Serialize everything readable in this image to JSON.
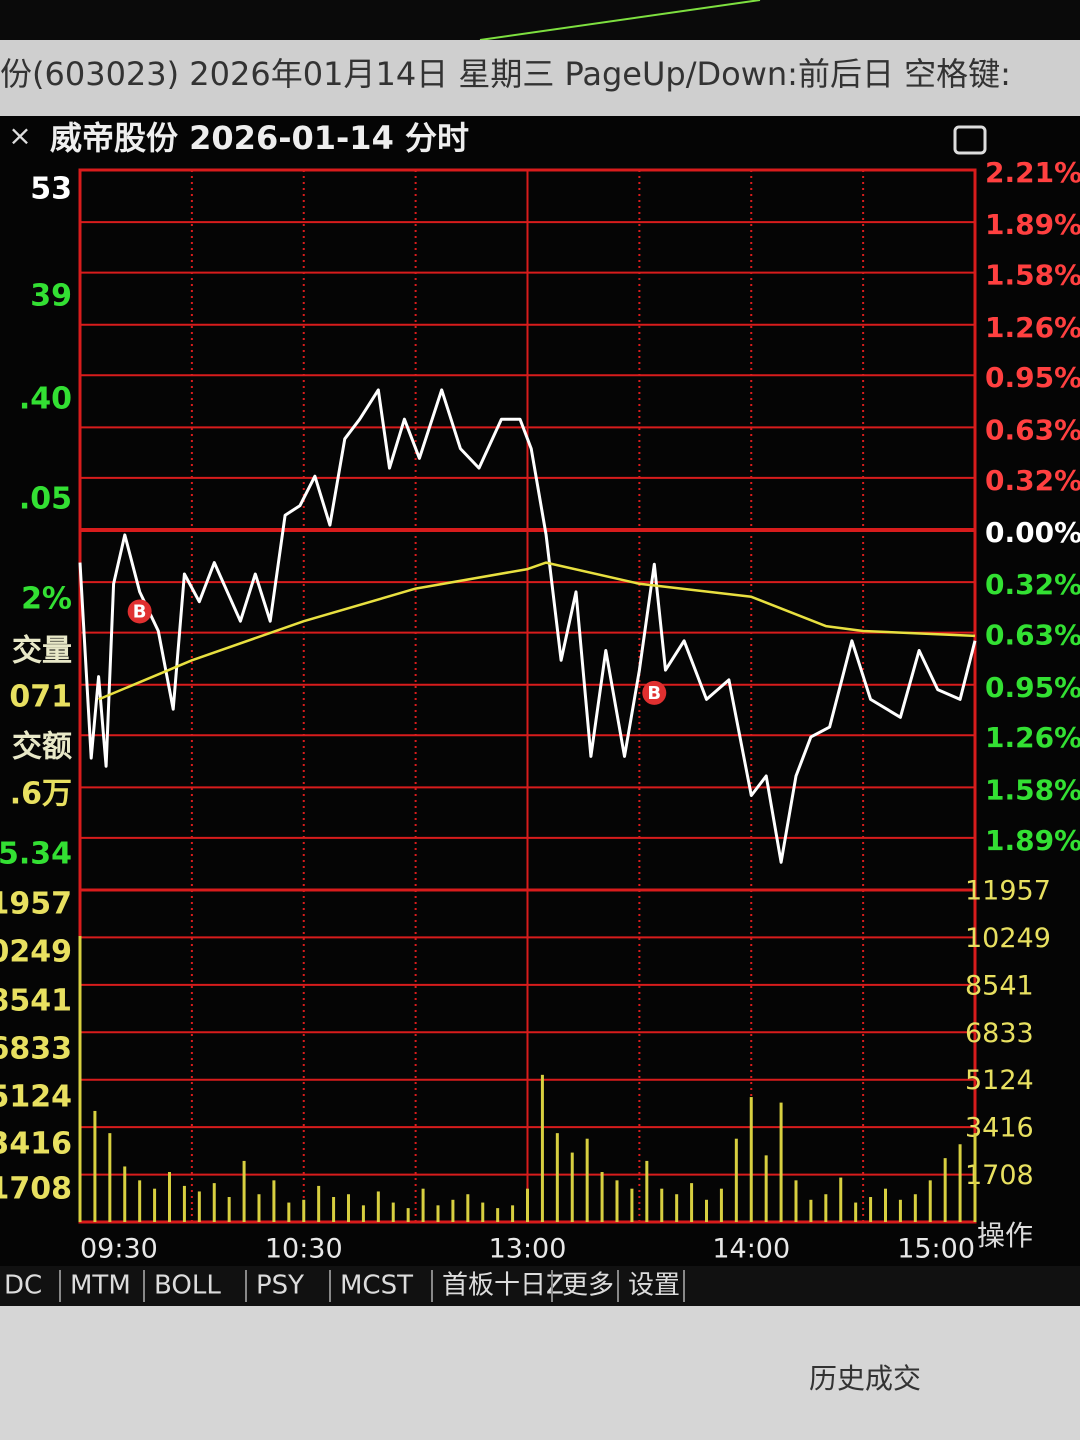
{
  "header": {
    "text": "份(603023) 2026年01月14日 星期三 PageUp/Down:前后日 空格键:"
  },
  "panel": {
    "close": "×",
    "title": "威帝股份  2026-01-14 分时",
    "action": "操作"
  },
  "left_labels": [
    {
      "text": "53",
      "color": "#ffffff"
    },
    {
      "text": "39",
      "color": "#33e033"
    },
    {
      "text": ".40",
      "color": "#33e033"
    },
    {
      "text": ".05",
      "color": "#33e033"
    },
    {
      "text": "2%",
      "color": "#33e033"
    },
    {
      "text": "交量",
      "color": "#e8e8c8"
    },
    {
      "text": "071",
      "color": "#e8e060"
    },
    {
      "text": "交额",
      "color": "#e8e8c8"
    },
    {
      "text": ".6万",
      "color": "#e8e060"
    },
    {
      "text": "5.34",
      "color": "#33e033"
    },
    {
      "text": "1957",
      "color": "#e8e060"
    },
    {
      "text": "0249",
      "color": "#e8e060"
    },
    {
      "text": "8541",
      "color": "#e8e060"
    },
    {
      "text": "6833",
      "color": "#e8e060"
    },
    {
      "text": "5124",
      "color": "#e8e060"
    },
    {
      "text": "3416",
      "color": "#e8e060"
    },
    {
      "text": "1708",
      "color": "#e8e060"
    }
  ],
  "tabs": [
    "DC",
    "MTM",
    "BOLL",
    "PSY",
    "MCST",
    "首板十日Z",
    "更多",
    "设置"
  ],
  "footer": {
    "text": "历史成交"
  },
  "chart_data": [
    {
      "type": "line",
      "xlim": [
        0,
        240
      ],
      "xticks": [
        {
          "value": 0,
          "label": "09:30"
        },
        {
          "value": 60,
          "label": "10:30"
        },
        {
          "value": 120,
          "label": "13:00"
        },
        {
          "value": 180,
          "label": "14:00"
        },
        {
          "value": 240,
          "label": "15:00"
        }
      ],
      "ylim": [
        -2.21,
        2.21
      ],
      "yticks": [
        {
          "value": 2.21,
          "label": "2.21%"
        },
        {
          "value": 1.89,
          "label": "1.89%"
        },
        {
          "value": 1.58,
          "label": "1.58%"
        },
        {
          "value": 1.26,
          "label": "1.26%"
        },
        {
          "value": 0.95,
          "label": "0.95%"
        },
        {
          "value": 0.63,
          "label": "0.63%"
        },
        {
          "value": 0.32,
          "label": "0.32%"
        },
        {
          "value": 0,
          "label": "0.00%"
        },
        {
          "value": -0.32,
          "label": "0.32%"
        },
        {
          "value": -0.63,
          "label": "0.63%"
        },
        {
          "value": -0.95,
          "label": "0.95%"
        },
        {
          "value": -1.26,
          "label": "1.26%"
        },
        {
          "value": -1.58,
          "label": "1.58%"
        },
        {
          "value": -1.89,
          "label": "1.89%"
        }
      ],
      "up_color": "#ff4040",
      "flat_color": "#ffffff",
      "down_color": "#33e033",
      "grid_color": "#d81c1c",
      "grid": true,
      "series": [
        {
          "name": "价格",
          "color": "#ffffff",
          "x": [
            0,
            3,
            5,
            7,
            9,
            12,
            16,
            21,
            25,
            28,
            32,
            36,
            43,
            47,
            51,
            55,
            59,
            63,
            67,
            71,
            75,
            80,
            83,
            87,
            91,
            97,
            102,
            107,
            113,
            118,
            121,
            125,
            129,
            133,
            137,
            141,
            146,
            150,
            154,
            157,
            162,
            168,
            174,
            180,
            184,
            188,
            192,
            196,
            201,
            207,
            212,
            220,
            225,
            230,
            236,
            240
          ],
          "values": [
            -0.2,
            -1.4,
            -0.9,
            -1.45,
            -0.33,
            -0.03,
            -0.38,
            -0.62,
            -1.1,
            -0.27,
            -0.44,
            -0.2,
            -0.56,
            -0.27,
            -0.56,
            0.09,
            0.15,
            0.33,
            0.03,
            0.56,
            0.68,
            0.86,
            0.38,
            0.68,
            0.44,
            0.86,
            0.5,
            0.38,
            0.68,
            0.68,
            0.5,
            -0.03,
            -0.8,
            -0.38,
            -1.39,
            -0.74,
            -1.39,
            -0.86,
            -0.21,
            -0.86,
            -0.68,
            -1.04,
            -0.92,
            -1.63,
            -1.51,
            -2.04,
            -1.51,
            -1.27,
            -1.21,
            -0.68,
            -1.04,
            -1.15,
            -0.74,
            -0.98,
            -1.04,
            -0.68
          ]
        },
        {
          "name": "均价",
          "color": "#e8e040",
          "x": [
            5,
            30,
            60,
            90,
            120,
            125,
            150,
            180,
            200,
            210,
            240
          ],
          "values": [
            -1.04,
            -0.8,
            -0.56,
            -0.36,
            -0.24,
            -0.2,
            -0.33,
            -0.41,
            -0.59,
            -0.62,
            -0.65
          ]
        }
      ],
      "markers": [
        {
          "x": 16,
          "y": -0.5,
          "label": "B"
        },
        {
          "x": 154,
          "y": -1.0,
          "label": "B"
        }
      ]
    },
    {
      "type": "bar",
      "color": "#d8d040",
      "label_color": "#e8e060",
      "xlim": [
        0,
        240
      ],
      "ylim": [
        0,
        11957
      ],
      "yticks": [
        1708,
        3416,
        5124,
        6833,
        8541,
        10249,
        11957
      ],
      "x": [
        0,
        4,
        8,
        12,
        16,
        20,
        24,
        28,
        32,
        36,
        40,
        44,
        48,
        52,
        56,
        60,
        64,
        68,
        72,
        76,
        80,
        84,
        88,
        92,
        96,
        100,
        104,
        108,
        112,
        116,
        120,
        124,
        128,
        132,
        136,
        140,
        144,
        148,
        152,
        156,
        160,
        164,
        168,
        172,
        176,
        180,
        184,
        188,
        192,
        196,
        200,
        204,
        208,
        212,
        216,
        220,
        224,
        228,
        232,
        236,
        240
      ],
      "values": [
        10300,
        4000,
        3200,
        2000,
        1500,
        1200,
        1800,
        1300,
        1100,
        1400,
        900,
        2200,
        1000,
        1500,
        700,
        800,
        1300,
        900,
        1000,
        600,
        1100,
        700,
        500,
        1200,
        600,
        800,
        1000,
        700,
        500,
        600,
        1200,
        5300,
        3200,
        2500,
        3000,
        1800,
        1500,
        1200,
        2200,
        1200,
        1000,
        1400,
        800,
        1200,
        3000,
        4500,
        2400,
        4300,
        1500,
        800,
        1000,
        1600,
        700,
        900,
        1200,
        800,
        1000,
        1500,
        2300,
        2800,
        3200
      ]
    }
  ]
}
